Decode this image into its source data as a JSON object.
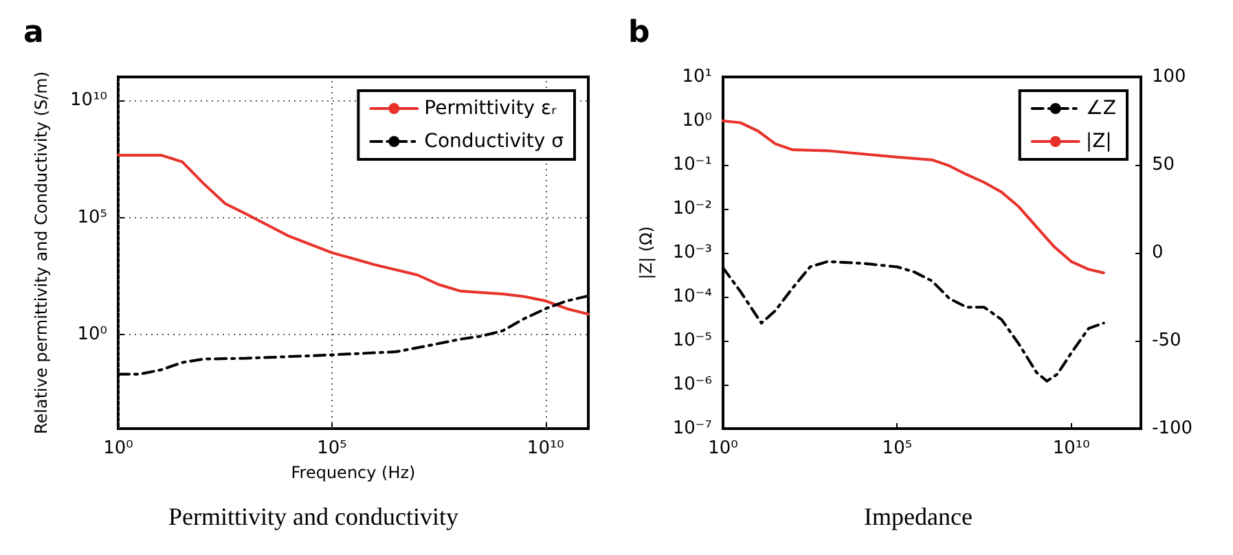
{
  "chart_data": [
    {
      "type": "line",
      "title": "a",
      "xlabel": "Frequency (Hz)",
      "ylabel": "Relative permittivity and Conductivity (S/m)",
      "annotations": [
        "Permittivity and conductivity"
      ],
      "log": "xy",
      "grid": true,
      "legend": "top right",
      "marker": "none",
      "xlim": [
        1,
        100000000000.0
      ],
      "xticks": [
        {
          "value": 1,
          "label": "10⁰"
        },
        {
          "value": 100000,
          "label": "10⁵"
        },
        {
          "value": 10000000000,
          "label": "10¹⁰"
        }
      ],
      "ylim": [
        0.0001,
        100000000000.0
      ],
      "yticks": [
        {
          "value": 1,
          "label": "10⁰"
        },
        {
          "value": 100000,
          "label": "10⁵"
        },
        {
          "value": 10000000000,
          "label": "10¹⁰"
        }
      ],
      "series": [
        {
          "name": "Permittivity εᵣ",
          "color": "#e8312a",
          "line_style": "solid",
          "x": [
            1,
            10,
            31.6,
            100,
            316,
            1000,
            10000,
            100000,
            1000000,
            10000000,
            31600000,
            100000000,
            1000000000,
            3160000000,
            10000000000,
            31600000000,
            100000000000
          ],
          "values": [
            46000000,
            46000000,
            24000000,
            2800000,
            400000,
            140000,
            16000,
            3200,
            980,
            360,
            140,
            74,
            55,
            43,
            28,
            13,
            7.6
          ]
        },
        {
          "name": "Conductivity σ",
          "color": "#000000",
          "line_style": "dashed",
          "x": [
            1,
            3.16,
            10,
            31.6,
            100,
            1000,
            100000,
            3160000,
            10000000,
            100000000,
            316000000,
            1000000000,
            3160000000,
            10000000000,
            31600000000,
            100000000000
          ],
          "values": [
            0.021,
            0.021,
            0.032,
            0.066,
            0.093,
            0.1,
            0.14,
            0.19,
            0.28,
            0.65,
            0.88,
            1.5,
            4.9,
            13,
            28,
            46
          ]
        }
      ]
    },
    {
      "type": "line",
      "title": "b",
      "ylabel": "|Z| (Ω)",
      "annotations": [
        "Impedance"
      ],
      "log": "xy",
      "grid": false,
      "legend": "top right",
      "marker": "none",
      "xlim": [
        1,
        1000000000000.0
      ],
      "xticks": [
        {
          "value": 1,
          "label": "10⁰"
        },
        {
          "value": 100000,
          "label": "10⁵"
        },
        {
          "value": 10000000000,
          "label": "10¹⁰"
        }
      ],
      "ylim": [
        1e-07,
        10
      ],
      "yticks": [
        {
          "value": 1e-07,
          "label": "10⁻⁷"
        },
        {
          "value": 1e-06,
          "label": "10⁻⁶"
        },
        {
          "value": 1e-05,
          "label": "10⁻⁵"
        },
        {
          "value": 0.0001,
          "label": "10⁻⁴"
        },
        {
          "value": 0.001,
          "label": "10⁻³"
        },
        {
          "value": 0.01,
          "label": "10⁻²"
        },
        {
          "value": 0.1,
          "label": "10⁻¹"
        },
        {
          "value": 1,
          "label": "10⁰"
        },
        {
          "value": 10,
          "label": "10¹"
        }
      ],
      "y2lim": [
        -100,
        100
      ],
      "y2ticks": [
        -100,
        -50,
        0,
        50,
        100
      ],
      "series": [
        {
          "name": "∠Z",
          "color": "#000000",
          "line_style": "dashed",
          "axis": "y2",
          "x": [
            1,
            3.16,
            12.6,
            31.6,
            100,
            316,
            1000,
            10000,
            100000,
            316000,
            1000000,
            3160000,
            10000000,
            31600000,
            100000000,
            316000000,
            1000000000,
            2000000000,
            4000000000,
            10000000000,
            31600000000,
            85000000000
          ],
          "values": [
            -8.6,
            -22,
            -40,
            -33,
            -20,
            -8,
            -5,
            -6,
            -8,
            -11,
            -16,
            -26,
            -31,
            -31,
            -38,
            -52,
            -68,
            -73,
            -69,
            -57,
            -43,
            -40
          ]
        },
        {
          "name": "|Z|",
          "color": "#e8312a",
          "line_style": "solid",
          "x": [
            1,
            3.16,
            10,
            31.6,
            100,
            1000,
            100000,
            1000000,
            3160000,
            10000000,
            31600000,
            100000000,
            316000000,
            1000000000,
            3160000000,
            10000000000,
            31600000000,
            85000000000
          ],
          "values": [
            1.0,
            0.91,
            0.59,
            0.3,
            0.22,
            0.21,
            0.15,
            0.13,
            0.095,
            0.06,
            0.04,
            0.024,
            0.011,
            0.0039,
            0.0014,
            0.00063,
            0.00042,
            0.00035
          ]
        }
      ]
    }
  ]
}
